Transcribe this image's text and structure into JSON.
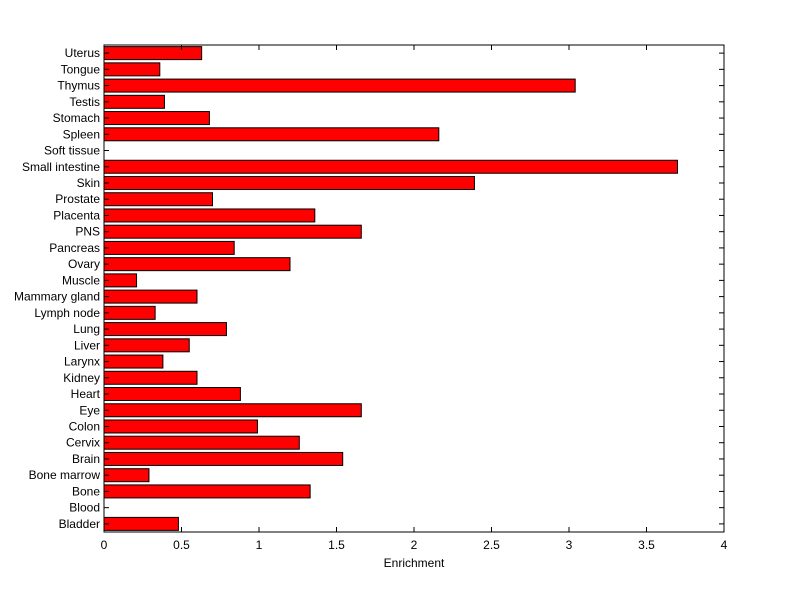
{
  "chart_data": {
    "type": "bar",
    "orientation": "horizontal",
    "title": "",
    "xlabel": "Enrichment",
    "ylabel": "",
    "xlim": [
      0,
      4
    ],
    "xticks": [
      "0",
      "0.5",
      "1",
      "1.5",
      "2",
      "2.5",
      "3",
      "3.5",
      "4"
    ],
    "grid": false,
    "bar_color": "#ff0000",
    "edge_color": "#000000",
    "categories": [
      "Bladder",
      "Blood",
      "Bone",
      "Bone marrow",
      "Brain",
      "Cervix",
      "Colon",
      "Eye",
      "Heart",
      "Kidney",
      "Larynx",
      "Liver",
      "Lung",
      "Lymph node",
      "Mammary gland",
      "Muscle",
      "Ovary",
      "Pancreas",
      "PNS",
      "Placenta",
      "Prostate",
      "Skin",
      "Small intestine",
      "Soft tissue",
      "Spleen",
      "Stomach",
      "Testis",
      "Thymus",
      "Tongue",
      "Uterus"
    ],
    "values": [
      0.48,
      0,
      1.33,
      0.29,
      1.54,
      1.26,
      0.99,
      1.66,
      0.88,
      0.6,
      0.38,
      0.55,
      0.79,
      0.33,
      0.6,
      0.21,
      1.2,
      0.84,
      1.66,
      1.36,
      0.7,
      2.39,
      3.7,
      0,
      2.16,
      0.68,
      0.39,
      3.04,
      0.36,
      0.63
    ]
  }
}
